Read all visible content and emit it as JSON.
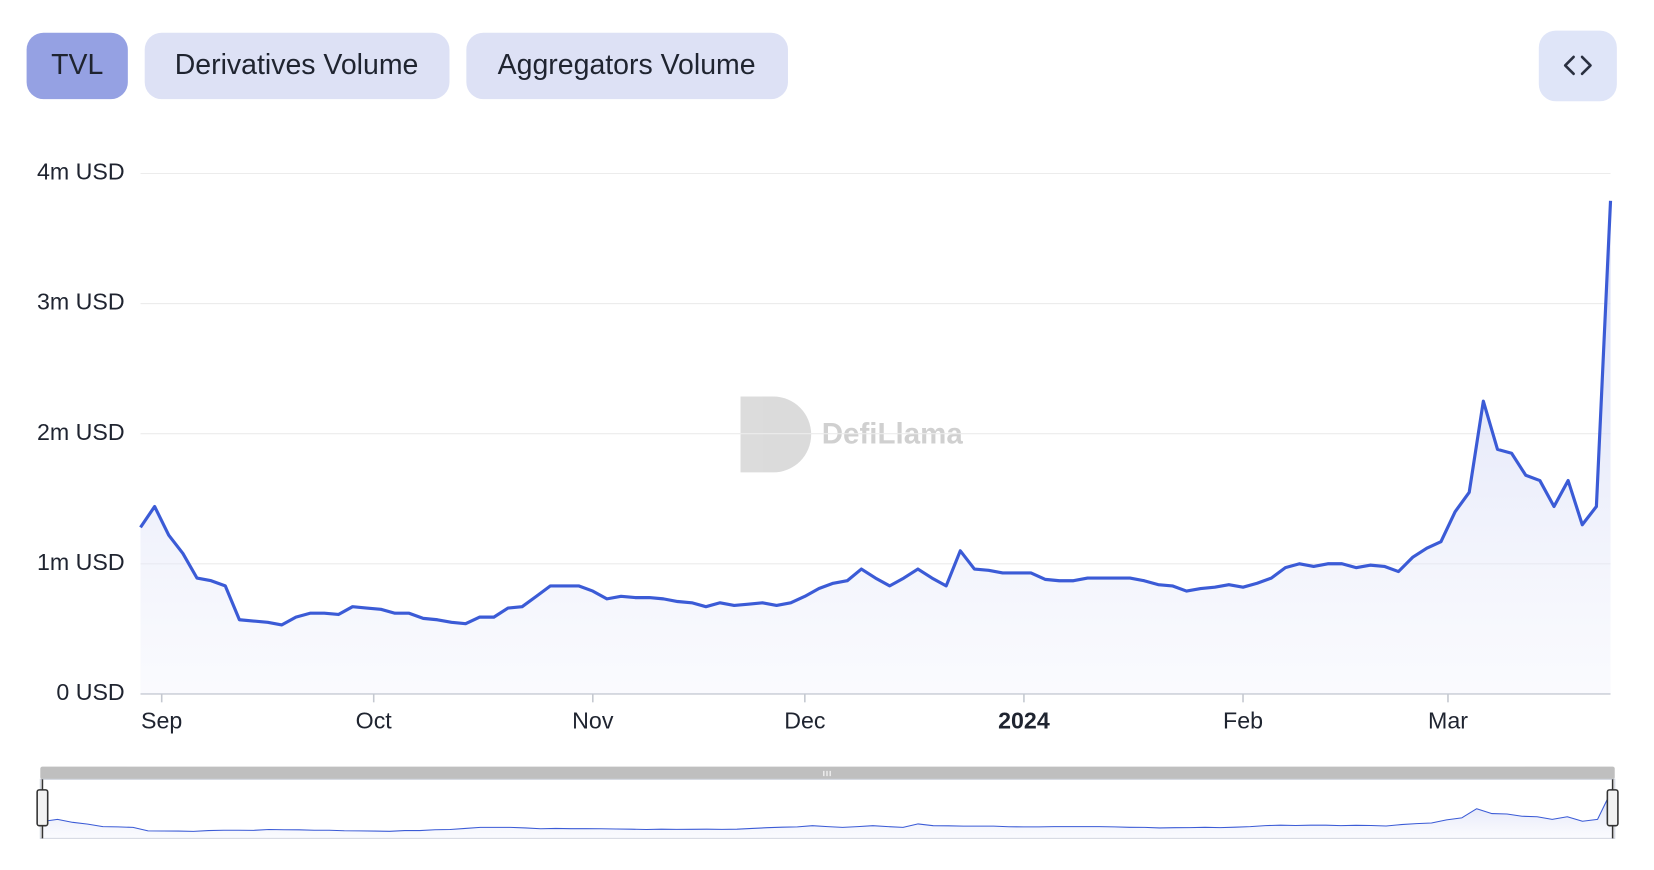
{
  "tabs": [
    "TVL",
    "Derivatives Volume",
    "Aggregators Volume"
  ],
  "chart_data": {
    "type": "area",
    "watermark": "DefiLlama",
    "color": "#3b5bd6",
    "grid": true,
    "values": [
      1280000,
      1440000,
      1220000,
      1080000,
      890000,
      870000,
      830000,
      570000,
      560000,
      550000,
      530000,
      590000,
      620000,
      620000,
      610000,
      670000,
      660000,
      650000,
      620000,
      620000,
      580000,
      570000,
      550000,
      540000,
      590000,
      590000,
      660000,
      670000,
      750000,
      830000,
      830000,
      830000,
      790000,
      730000,
      750000,
      740000,
      740000,
      730000,
      710000,
      700000,
      670000,
      700000,
      680000,
      690000,
      700000,
      680000,
      700000,
      750000,
      810000,
      850000,
      870000,
      960000,
      890000,
      830000,
      890000,
      960000,
      890000,
      830000,
      1100000,
      960000,
      950000,
      930000,
      930000,
      930000,
      880000,
      870000,
      870000,
      890000,
      890000,
      890000,
      890000,
      870000,
      840000,
      830000,
      790000,
      810000,
      820000,
      840000,
      820000,
      850000,
      890000,
      970000,
      1000000,
      980000,
      1000000,
      1000000,
      970000,
      990000,
      980000,
      940000,
      1050000,
      1120000,
      1170000,
      1400000,
      1550000,
      2250000,
      1880000,
      1850000,
      1680000,
      1640000,
      1440000,
      1640000,
      1300000,
      1440000,
      3790000
    ],
    "xlim": [
      0,
      104
    ],
    "xticks": [
      {
        "value": 1.5,
        "label": "Sep"
      },
      {
        "value": 16.5,
        "label": "Oct"
      },
      {
        "value": 32,
        "label": "Nov"
      },
      {
        "value": 47,
        "label": "Dec"
      },
      {
        "value": 62.5,
        "label": "2024"
      },
      {
        "value": 78,
        "label": "Feb"
      },
      {
        "value": 92.5,
        "label": "Mar"
      }
    ],
    "ylim": [
      0,
      4000000
    ],
    "yticks": [
      {
        "value": 0,
        "label": "0 USD"
      },
      {
        "value": 1000000,
        "label": "1m USD"
      },
      {
        "value": 2000000,
        "label": "2m USD"
      },
      {
        "value": 3000000,
        "label": "3m USD"
      },
      {
        "value": 4000000,
        "label": "4m USD"
      }
    ]
  }
}
